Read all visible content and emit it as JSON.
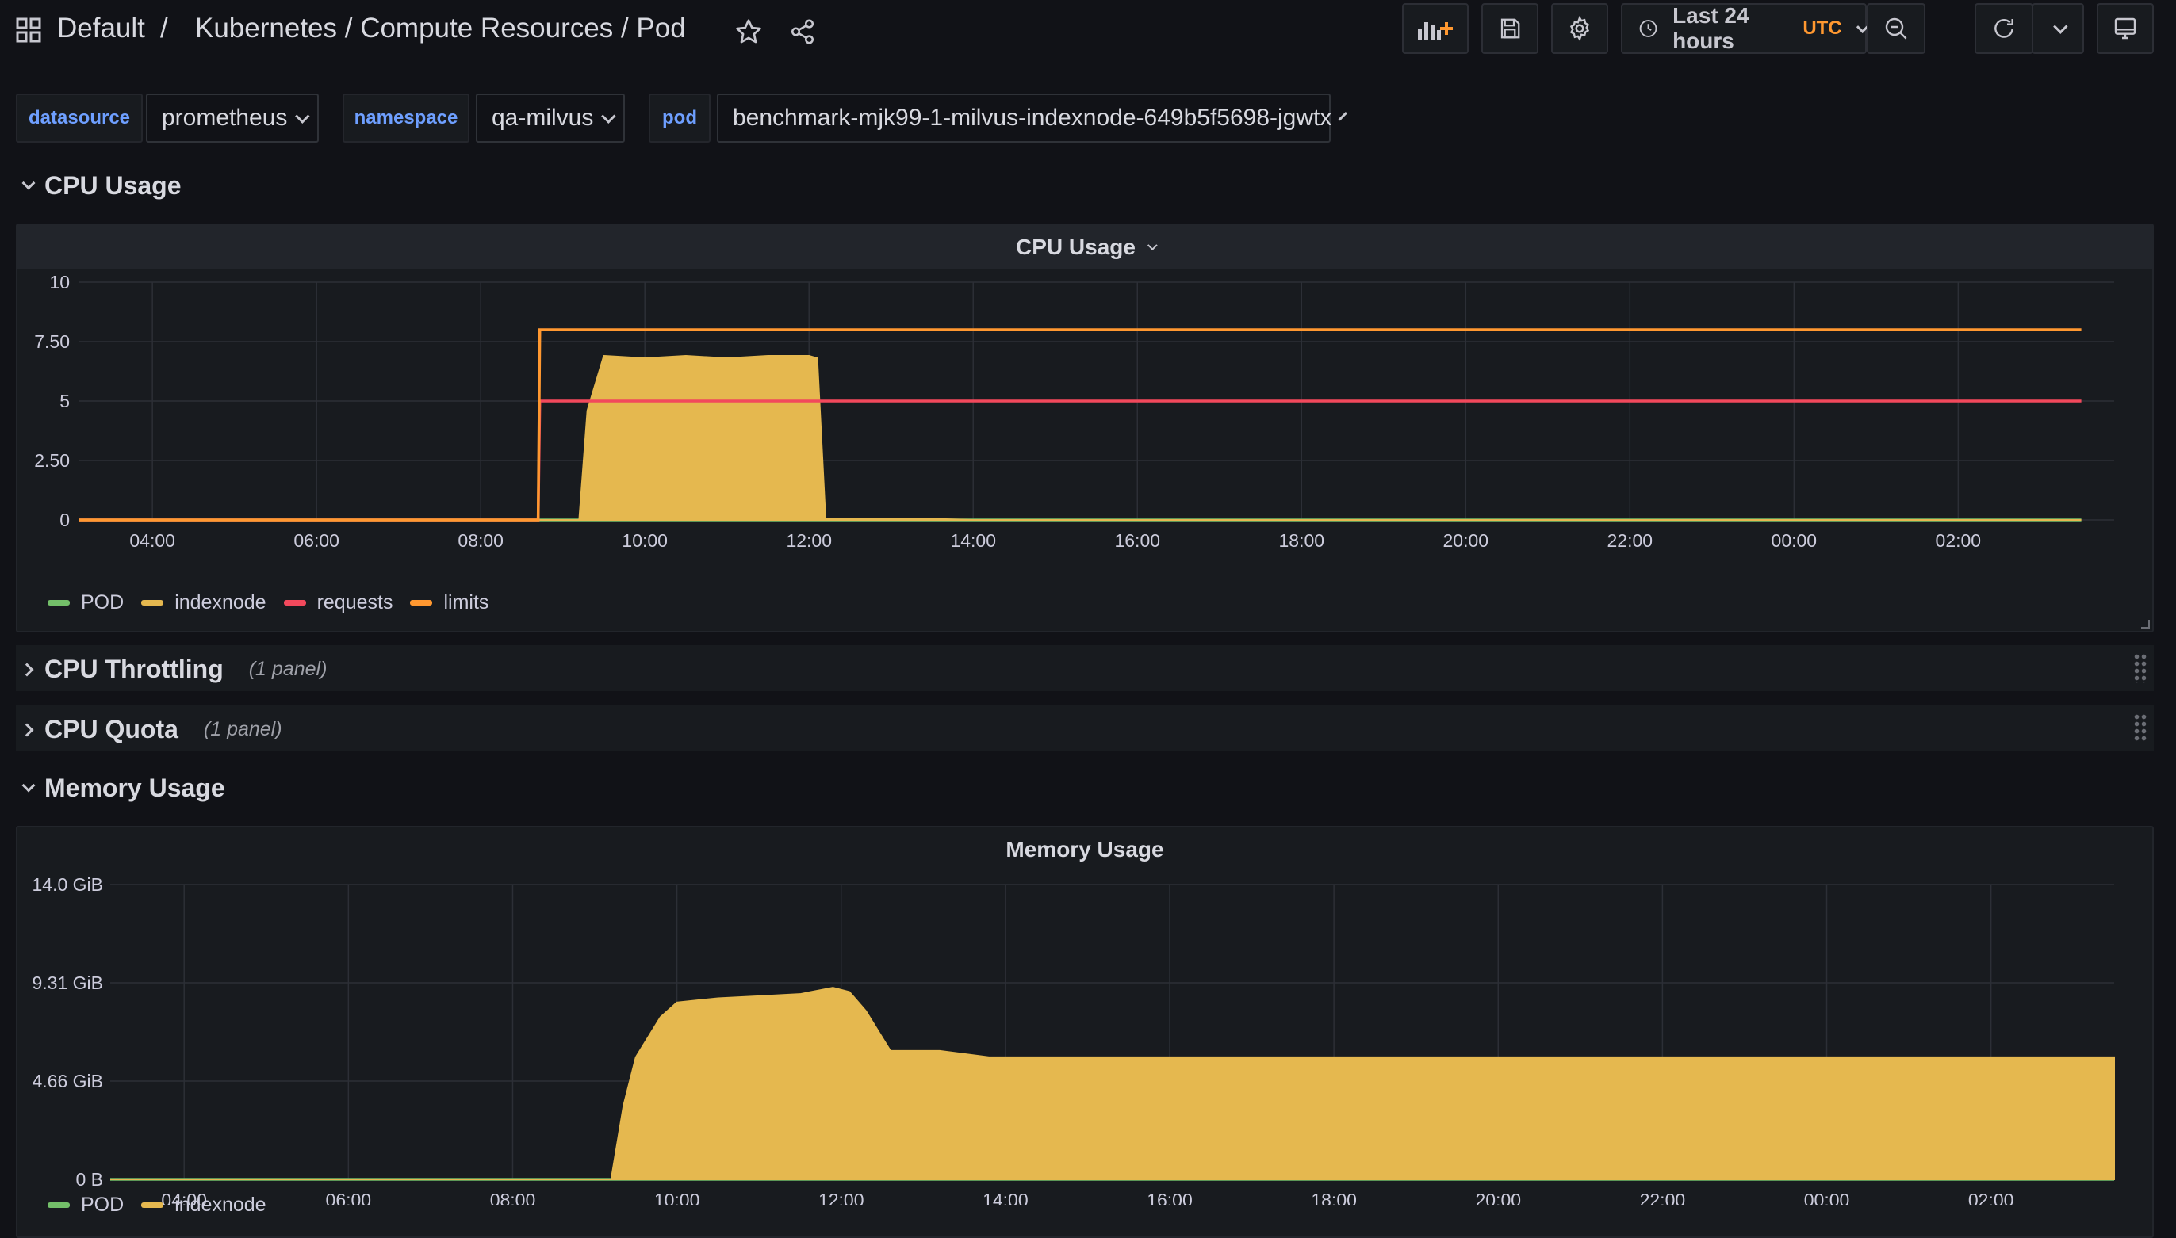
{
  "header": {
    "folder": "Default",
    "separator": "/",
    "dashboard_title": "Kubernetes / Compute Resources / Pod",
    "time_range": "Last 24 hours",
    "timezone": "UTC"
  },
  "variables": [
    {
      "label": "datasource",
      "value": "prometheus"
    },
    {
      "label": "namespace",
      "value": "qa-milvus"
    },
    {
      "label": "pod",
      "value": "benchmark-mjk99-1-milvus-indexnode-649b5f5698-jgwtx"
    }
  ],
  "rows": {
    "cpu_usage": {
      "title": "CPU Usage"
    },
    "cpu_throttling": {
      "title": "CPU Throttling",
      "count": "(1 panel)"
    },
    "cpu_quota": {
      "title": "CPU Quota",
      "count": "(1 panel)"
    },
    "memory_usage": {
      "title": "Memory Usage"
    }
  },
  "colors": {
    "POD": "#73bf69",
    "indexnode": "#e5b84f",
    "requests": "#f2495c",
    "limits": "#ff9830",
    "accent": "#ff9830"
  },
  "chart_data": [
    {
      "type": "area",
      "title": "CPU Usage",
      "x_ticks": [
        "04:00",
        "06:00",
        "08:00",
        "10:00",
        "12:00",
        "14:00",
        "16:00",
        "18:00",
        "20:00",
        "22:00",
        "00:00",
        "02:00"
      ],
      "y_ticks": [
        "0",
        "2.50",
        "5",
        "7.50",
        "10"
      ],
      "ylim": [
        0,
        10
      ],
      "legend_position": "bottom-left",
      "grid": true,
      "series": [
        {
          "name": "POD",
          "color": "#73bf69",
          "x": [
            3.1,
            27.5
          ],
          "y": [
            0,
            0
          ]
        },
        {
          "name": "indexnode",
          "color": "#e5b84f",
          "fill": true,
          "x": [
            3.1,
            9.2,
            9.3,
            9.5,
            10.0,
            10.5,
            11.0,
            11.5,
            12.0,
            12.1,
            12.2,
            13.5,
            14.0,
            27.5
          ],
          "y": [
            0,
            0,
            4.6,
            6.9,
            6.8,
            6.9,
            6.8,
            6.9,
            6.9,
            6.8,
            0.05,
            0.05,
            0,
            0
          ]
        },
        {
          "name": "requests",
          "color": "#f2495c",
          "x": [
            3.1,
            8.7,
            8.72,
            27.5
          ],
          "y": [
            0,
            0,
            5,
            5
          ]
        },
        {
          "name": "limits",
          "color": "#ff9830",
          "x": [
            3.1,
            8.7,
            8.72,
            27.5
          ],
          "y": [
            0,
            0,
            8,
            8
          ]
        }
      ]
    },
    {
      "type": "area",
      "title": "Memory Usage",
      "x_ticks": [
        "04:00",
        "06:00",
        "08:00",
        "10:00",
        "12:00",
        "14:00",
        "16:00",
        "18:00",
        "20:00",
        "22:00",
        "00:00",
        "02:00"
      ],
      "y_ticks": [
        "0 B",
        "4.66 GiB",
        "9.31 GiB",
        "14.0 GiB"
      ],
      "y_unit": "GiB",
      "ylim": [
        0,
        14.0
      ],
      "legend_position": "bottom-left",
      "grid": true,
      "series": [
        {
          "name": "POD",
          "color": "#73bf69",
          "x": [
            3.1,
            27.5
          ],
          "y": [
            0,
            0
          ]
        },
        {
          "name": "indexnode",
          "color": "#e5b84f",
          "fill": true,
          "x": [
            3.1,
            9.2,
            9.35,
            9.5,
            9.8,
            10.0,
            10.5,
            11.0,
            11.5,
            11.9,
            12.1,
            12.3,
            12.6,
            13.2,
            13.8,
            27.5
          ],
          "y": [
            0,
            0,
            3.5,
            5.8,
            7.7,
            8.4,
            8.6,
            8.7,
            8.8,
            9.1,
            8.9,
            8.0,
            6.1,
            6.1,
            5.8,
            5.8
          ]
        }
      ]
    }
  ]
}
